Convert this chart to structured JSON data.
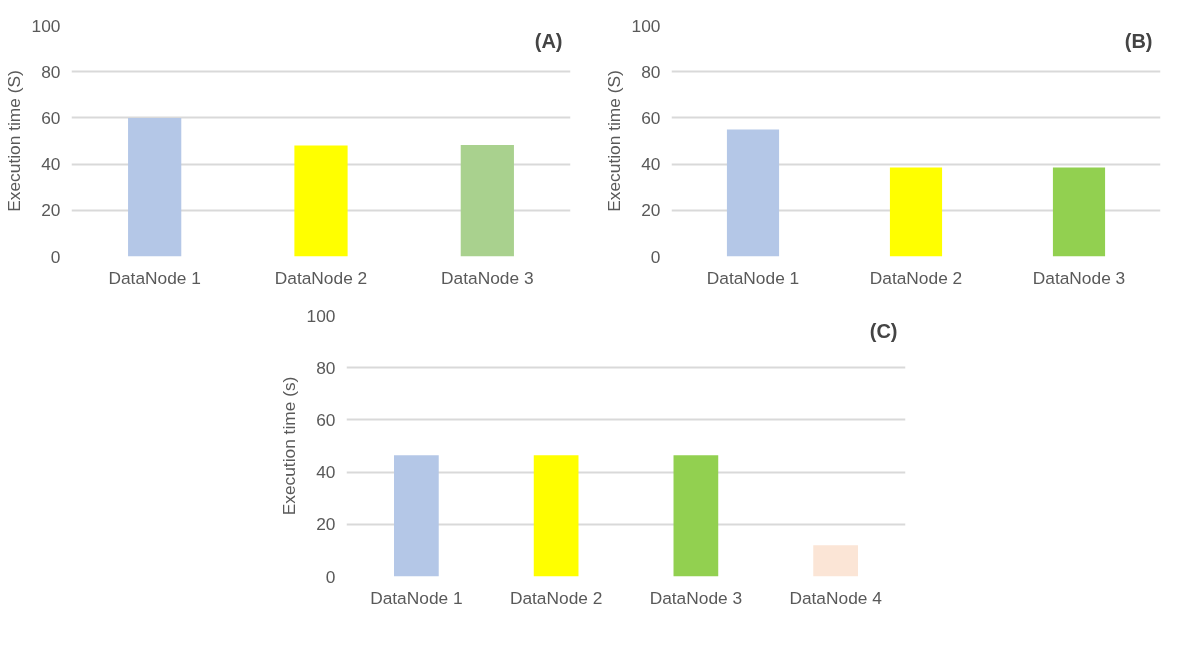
{
  "chart_data": [
    {
      "type": "bar",
      "title": "(A)",
      "ylabel": "Execution time (S)",
      "categories": [
        "DataNode 1",
        "DataNode 2",
        "DataNode 3"
      ],
      "values": [
        60,
        48,
        48.3
      ],
      "colors": [
        "#b4c7e7",
        "#ffff00",
        "#a9d18e"
      ],
      "ylim": [
        0,
        100
      ],
      "yticks": [
        0,
        20,
        40,
        60,
        80,
        100
      ],
      "grid": "y"
    },
    {
      "type": "bar",
      "title": "(B)",
      "ylabel": "Execution time (S)",
      "categories": [
        "DataNode 1",
        "DataNode 2",
        "DataNode 3"
      ],
      "values": [
        55,
        38.5,
        38.5
      ],
      "colors": [
        "#b4c7e7",
        "#ffff00",
        "#92d050"
      ],
      "ylim": [
        0,
        100
      ],
      "yticks": [
        0,
        20,
        40,
        60,
        80,
        100
      ],
      "grid": "y"
    },
    {
      "type": "bar",
      "title": "(C)",
      "ylabel": "Execution time (s)",
      "categories": [
        "DataNode 1",
        "DataNode 2",
        "DataNode 3",
        "DataNode 4"
      ],
      "values": [
        46.5,
        46.5,
        46.5,
        12
      ],
      "colors": [
        "#b4c7e7",
        "#ffff00",
        "#92d050",
        "#fbe5d6"
      ],
      "ylim": [
        0,
        100
      ],
      "yticks": [
        0,
        20,
        40,
        60,
        80,
        100
      ],
      "grid": "y"
    }
  ]
}
